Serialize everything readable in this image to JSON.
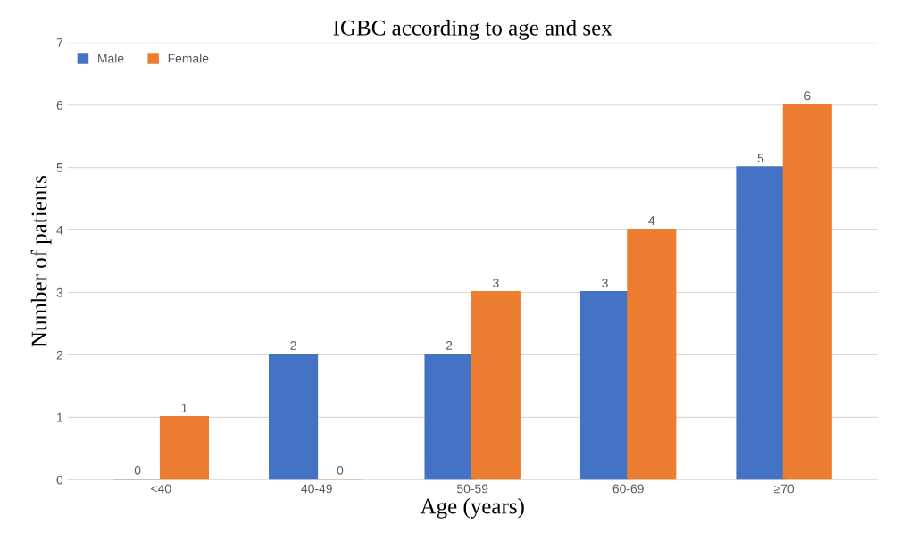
{
  "chart_data": {
    "type": "bar",
    "title": "IGBC according to age and sex",
    "xlabel": "Age (years)",
    "ylabel": "Number of patients",
    "categories": [
      "<40",
      "40-49",
      "50-59",
      "60-69",
      "≥70"
    ],
    "series": [
      {
        "name": "Male",
        "color": "#4472c4",
        "values": [
          0,
          2,
          2,
          3,
          5
        ]
      },
      {
        "name": "Female",
        "color": "#ed7d31",
        "values": [
          1,
          0,
          3,
          4,
          6
        ]
      }
    ],
    "ylim": [
      0,
      7
    ],
    "yticks": [
      0,
      1,
      2,
      3,
      4,
      5,
      6,
      7
    ],
    "grid": "y",
    "legend": "top left",
    "data_labels": true
  }
}
